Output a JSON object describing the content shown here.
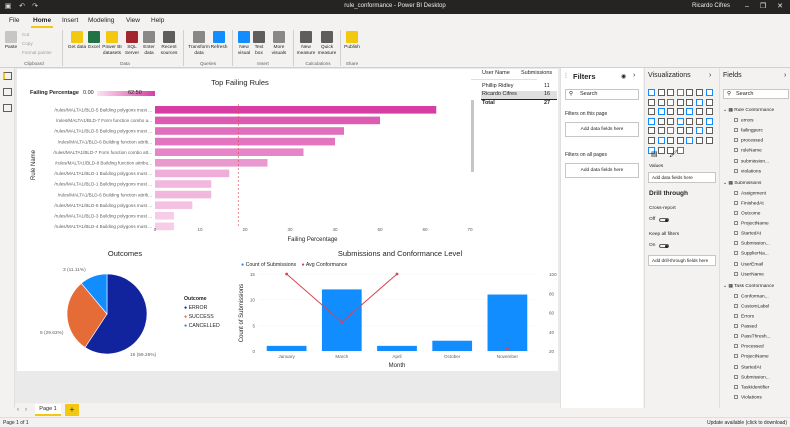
{
  "window": {
    "title": "rule_conformance - Power BI Desktop",
    "user": "Ricardo Cifres"
  },
  "menu": {
    "tabs": [
      "File",
      "Home",
      "Insert",
      "Modeling",
      "View",
      "Help"
    ],
    "active": "Home"
  },
  "ribbon": {
    "clipboard": {
      "paste": "Paste",
      "cut": "Cut",
      "copy": "Copy",
      "format_painter": "Format painter",
      "group": "Clipboard"
    },
    "data": {
      "get_data": "Get data",
      "excel": "Excel",
      "pbi_datasets": "Power BI datasets",
      "sql": "SQL Server",
      "enter_data": "Enter data",
      "recent_sources": "Recent sources",
      "group": "Data"
    },
    "queries": {
      "transform": "Transform data",
      "refresh": "Refresh",
      "group": "Queries"
    },
    "insert": {
      "new_visual": "New visual",
      "text_box": "Text box",
      "more_visuals": "More visuals",
      "group": "Insert"
    },
    "calculations": {
      "new_measure": "New measure",
      "quick_measure": "Quick measure",
      "group": "Calculations"
    },
    "share": {
      "publish": "Publish",
      "group": "Share"
    }
  },
  "top_failing": {
    "title": "Top Failing Rules",
    "legend_label": "Failing Percentage",
    "legend_min": "0.00",
    "legend_max": "62.50",
    "y_title": "Rule Name",
    "x_title": "Failing Percentage"
  },
  "user_table": {
    "col1": "User Name",
    "col2": "Submissions",
    "rows": [
      {
        "name": "Phillip Ridley",
        "value": "11"
      },
      {
        "name": "Ricardo Cifres",
        "value": "16"
      }
    ],
    "total_label": "Total",
    "total_value": "27"
  },
  "outcomes": {
    "title": "Outcomes",
    "legend_title": "Outcome",
    "label_cancelled": "3 (11.11%)",
    "label_success": "8 (29.63%)",
    "label_error": "16 (59.26%)"
  },
  "submissions": {
    "title": "Submissions and Conformance Level",
    "legend1": "Count of Submissions",
    "legend2": "Avg Conformance",
    "y_title": "Count of Submissions",
    "x_title": "Month"
  },
  "filters": {
    "title": "Filters",
    "search_placeholder": "Search",
    "on_page": "Filters on this page",
    "on_all": "Filters on all pages",
    "add_fields": "Add data fields here"
  },
  "visualizations": {
    "title": "Visualizations",
    "values_label": "Values",
    "values_box": "Add data fields here",
    "drill_title": "Drill through",
    "cross_report": "Cross-report",
    "cross_state": "Off",
    "keep_filters": "Keep all filters",
    "keep_state": "On",
    "drill_box": "Add drill-through fields here"
  },
  "fields": {
    "title": "Fields",
    "search_placeholder": "Search",
    "items": [
      {
        "label": "Rule Conformance",
        "kind": "table"
      },
      {
        "label": "errors",
        "kind": "field"
      },
      {
        "label": "failingperc",
        "kind": "field"
      },
      {
        "label": "processed",
        "kind": "field"
      },
      {
        "label": "ruleName",
        "kind": "field"
      },
      {
        "label": "submission...",
        "kind": "field"
      },
      {
        "label": "violations",
        "kind": "field"
      },
      {
        "label": "Submissions",
        "kind": "table"
      },
      {
        "label": "Assignment",
        "kind": "field"
      },
      {
        "label": "FinishedAt",
        "kind": "field"
      },
      {
        "label": "Outcome",
        "kind": "field"
      },
      {
        "label": "ProjectName",
        "kind": "field"
      },
      {
        "label": "StartedAt",
        "kind": "field"
      },
      {
        "label": "Submission...",
        "kind": "field"
      },
      {
        "label": "SupplierNa...",
        "kind": "field"
      },
      {
        "label": "UserEmail",
        "kind": "field"
      },
      {
        "label": "UserName",
        "kind": "field"
      },
      {
        "label": "Task Conformance",
        "kind": "table"
      },
      {
        "label": "Conforman...",
        "kind": "field"
      },
      {
        "label": "CustomLabel",
        "kind": "field"
      },
      {
        "label": "Errors",
        "kind": "field"
      },
      {
        "label": "Passed",
        "kind": "field"
      },
      {
        "label": "PassThresh...",
        "kind": "field"
      },
      {
        "label": "Processed",
        "kind": "field"
      },
      {
        "label": "ProjectName",
        "kind": "field"
      },
      {
        "label": "StartedAt",
        "kind": "field"
      },
      {
        "label": "Submission...",
        "kind": "field"
      },
      {
        "label": "TaskIdentifier",
        "kind": "field"
      },
      {
        "label": "Violations",
        "kind": "field"
      }
    ]
  },
  "pages": {
    "page1": "Page 1",
    "add": "+"
  },
  "status": {
    "left": "Page 1 of 1",
    "right": "Update available (click to download)"
  },
  "chart_data": [
    {
      "type": "bar",
      "title": "Top Failing Rules",
      "xlabel": "Failing Percentage",
      "ylabel": "Rule Name",
      "orientation": "horizontal",
      "categories": [
        "/rules/MALTA1/BLD-5 Building polygons must ...",
        "/rules/MALTA1/BLD-7 Form function combo a...",
        "/rules/MALTA1/BLD-5 Building polygons must ...",
        "/rules/MALTA1/BLD-6 Building function attrib...",
        "/rules/MALTA1/BLD-7 Form function combo att...",
        "/rules/MALTA1/BLD-8 Building function attribu...",
        "/rules/MALTA1/BLD-1 Building polygons must ...",
        "/rules/MALTA1/BLD-1 Building polygons must ...",
        "/rules/MALTA1/BLD-6 Building function attrib...",
        "/rules/MALTA1/BLD-6 Building polygons must ...",
        "/rules/MALTA1/BLD-3 Building polygons must ...",
        "/rules/MALTA1/BLD-4 Building polygons must ..."
      ],
      "values": [
        62.5,
        50,
        42,
        40,
        33,
        25,
        16.5,
        12.5,
        12.5,
        8.3,
        4.2,
        4.2
      ],
      "xticks": [
        0,
        10,
        20,
        30,
        40,
        50,
        60,
        70
      ],
      "xlim": [
        0,
        70
      ]
    },
    {
      "type": "pie",
      "title": "Outcomes",
      "labels": [
        "ERROR",
        "SUCCESS",
        "CANCELLED"
      ],
      "values": [
        16,
        8,
        3
      ],
      "colors": [
        "#12239e",
        "#e66c37",
        "#118dff"
      ]
    },
    {
      "type": "bar",
      "title": "Submissions and Conformance Level",
      "categories": [
        "January",
        "March",
        "April",
        "October",
        "November"
      ],
      "series": [
        {
          "name": "Count of Submissions",
          "kind": "bar",
          "values": [
            1,
            12,
            1,
            2,
            11
          ],
          "color": "#118dff"
        },
        {
          "name": "Avg Conformance",
          "kind": "line",
          "values": [
            100,
            50,
            100,
            null,
            22
          ],
          "color": "#d64550"
        }
      ],
      "ylabel": "Count of Submissions",
      "xlabel": "Month",
      "ylim": [
        0,
        15
      ],
      "yticks": [
        0,
        5,
        10,
        15
      ],
      "y2lim": [
        20,
        100
      ],
      "y2ticks": [
        20,
        40,
        60,
        80,
        100
      ]
    }
  ]
}
